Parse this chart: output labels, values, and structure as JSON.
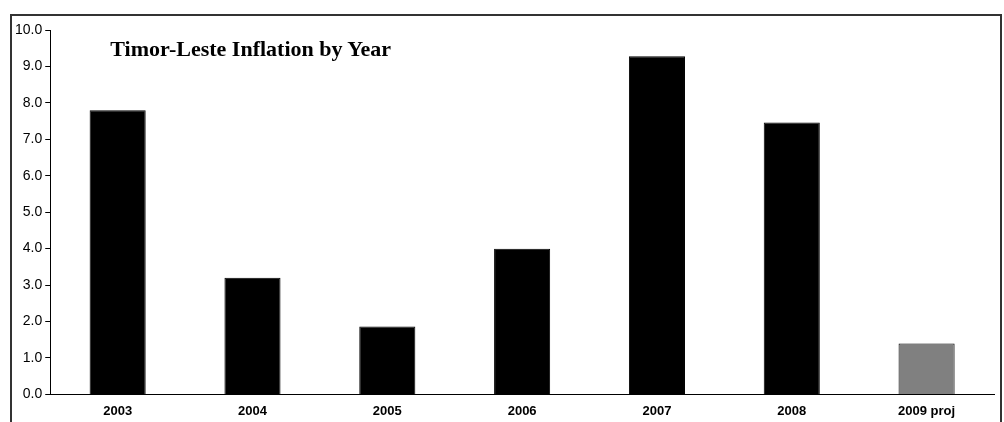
{
  "chart_data": {
    "type": "bar",
    "title": "Timor-Leste Inflation by Year",
    "categories": [
      "2003",
      "2004",
      "2005",
      "2006",
      "2007",
      "2008",
      "2009 proj"
    ],
    "values": [
      7.8,
      3.2,
      1.86,
      4.0,
      9.28,
      7.46,
      1.4
    ],
    "colors": [
      "#000000",
      "#000000",
      "#000000",
      "#000000",
      "#000000",
      "#000000",
      "#808080"
    ],
    "ylim": [
      0,
      10
    ],
    "yticks": [
      {
        "value": 0,
        "label": "0.0"
      },
      {
        "value": 1,
        "label": "1.0"
      },
      {
        "value": 2,
        "label": "2.0"
      },
      {
        "value": 3,
        "label": "3.0"
      },
      {
        "value": 4,
        "label": "4.0"
      },
      {
        "value": 5,
        "label": "5.0"
      },
      {
        "value": 6,
        "label": "6.0"
      },
      {
        "value": 7,
        "label": "7.0"
      },
      {
        "value": 8,
        "label": "8.0"
      },
      {
        "value": 9,
        "label": "9.0"
      },
      {
        "value": 10,
        "label": "10.0"
      }
    ],
    "grid": false,
    "legend": false
  }
}
